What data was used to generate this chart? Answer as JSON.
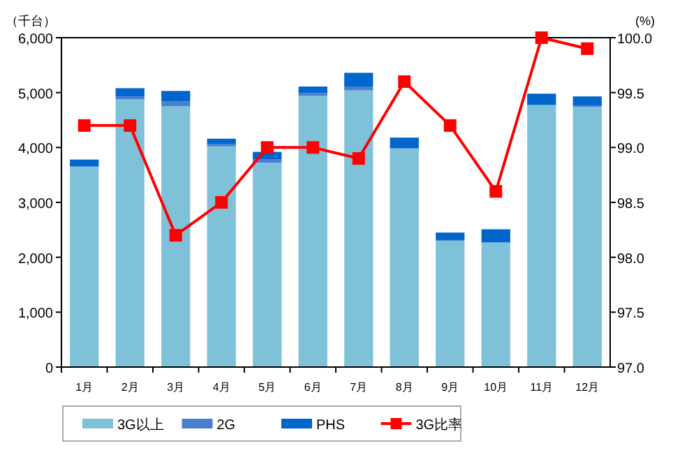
{
  "chart_data": {
    "type": "bar",
    "stacked": true,
    "ylabel": "（千台）",
    "y2label": "(%)",
    "categories": [
      "1月",
      "2月",
      "3月",
      "4月",
      "5月",
      "6月",
      "7月",
      "8月",
      "9月",
      "10月",
      "11月",
      "12月"
    ],
    "series": [
      {
        "name": "3G以上",
        "color": "#7fc1d9",
        "values": [
          3650,
          4880,
          4750,
          4020,
          3720,
          4940,
          5040,
          3980,
          2300,
          2270,
          4770,
          4740
        ]
      },
      {
        "name": "2G",
        "color": "#4a7fd0",
        "values": [
          10,
          50,
          90,
          40,
          60,
          50,
          70,
          10,
          10,
          null,
          10,
          20
        ]
      },
      {
        "name": "PHS",
        "color": "#0066cc",
        "values": [
          120,
          150,
          190,
          100,
          140,
          120,
          250,
          190,
          140,
          240,
          200,
          170
        ]
      },
      {
        "name": "3G比率",
        "type": "line",
        "axis": "y2",
        "color": "#ff0000",
        "marker": "square",
        "values": [
          99.2,
          99.2,
          98.2,
          98.5,
          99.0,
          99.0,
          98.9,
          99.6,
          99.2,
          98.6,
          100.0,
          99.9
        ]
      }
    ],
    "ylim": [
      0,
      6000
    ],
    "yticks": [
      0,
      {
        "value": 1000,
        "label": "1,000"
      },
      {
        "value": 2000,
        "label": "2,000"
      },
      {
        "value": 3000,
        "label": "3,000"
      },
      {
        "value": 4000,
        "label": "4,000"
      },
      {
        "value": 5000,
        "label": "5,000"
      },
      {
        "value": 6000,
        "label": "6,000"
      }
    ],
    "y2lim": [
      97,
      100
    ],
    "y2ticks": [
      {
        "value": 97,
        "label": "97.0"
      },
      97.5,
      {
        "value": 98,
        "label": "98.0"
      },
      98.5,
      {
        "value": 99,
        "label": "99.0"
      },
      99.5,
      {
        "value": 100,
        "label": "100.0"
      }
    ],
    "grid": false,
    "legend": "bottom"
  }
}
